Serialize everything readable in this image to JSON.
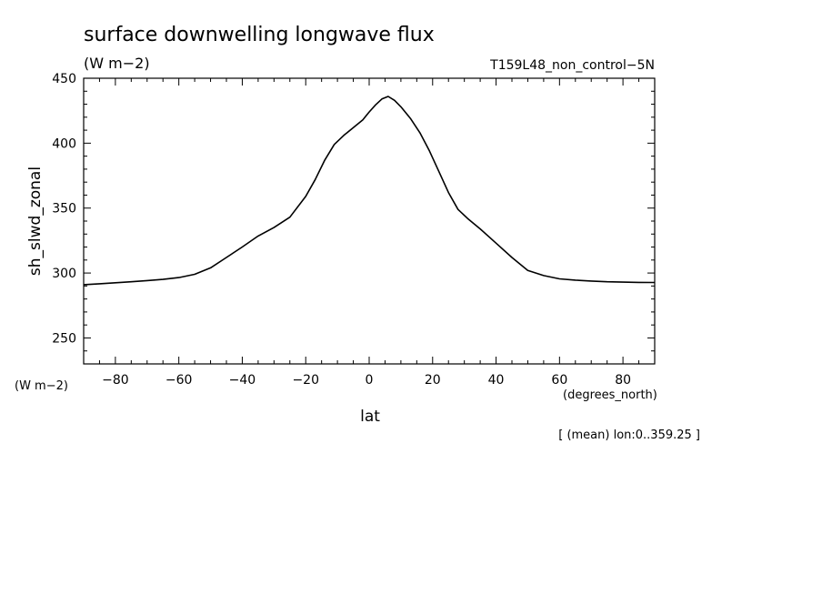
{
  "chart_data": {
    "type": "line",
    "title": "surface downwelling longwave flux",
    "units": "(W m−2)",
    "dataset": "T159L48_non_control−5N",
    "ylabel": "sh_slwd_zonal",
    "ylabel_units": "(W m−2)",
    "xlabel": "lat",
    "xlabel_units": "(degrees_north)",
    "footnote": "[ (mean) lon:0..359.25 ]",
    "xlim": [
      -90,
      90
    ],
    "ylim": [
      230,
      450
    ],
    "xticks": [
      -80,
      -60,
      -40,
      -20,
      0,
      20,
      40,
      60,
      80
    ],
    "xtick_labels": [
      "−80",
      "−60",
      "−40",
      "−20",
      "0",
      "20",
      "40",
      "60",
      "80"
    ],
    "yticks": [
      250,
      300,
      350,
      400,
      450
    ],
    "ytick_labels": [
      "250",
      "300",
      "350",
      "400",
      "450"
    ],
    "grid": false,
    "series": [
      {
        "x": [
          -90,
          -85,
          -80,
          -75,
          -70,
          -65,
          -60,
          -55,
          -50,
          -45,
          -40,
          -35,
          -30,
          -25,
          -20,
          -17,
          -14,
          -11,
          -8,
          -5,
          -2,
          0,
          2,
          4,
          6,
          8,
          10,
          13,
          16,
          19,
          22,
          25,
          28,
          31,
          35,
          40,
          45,
          50,
          55,
          60,
          65,
          70,
          75,
          80,
          85,
          90
        ],
        "y": [
          291,
          291.7,
          292.5,
          293.3,
          294.2,
          295.1,
          296.5,
          299,
          304,
          312,
          320,
          328.5,
          335,
          343,
          359,
          372,
          387,
          399,
          406,
          412,
          418,
          424,
          429.5,
          434,
          436,
          433,
          428,
          419,
          408,
          394,
          378,
          362,
          349,
          342,
          334,
          323,
          312,
          302,
          298,
          295.5,
          294.5,
          293.8,
          293.3,
          293,
          292.8,
          292.7
        ]
      }
    ]
  }
}
